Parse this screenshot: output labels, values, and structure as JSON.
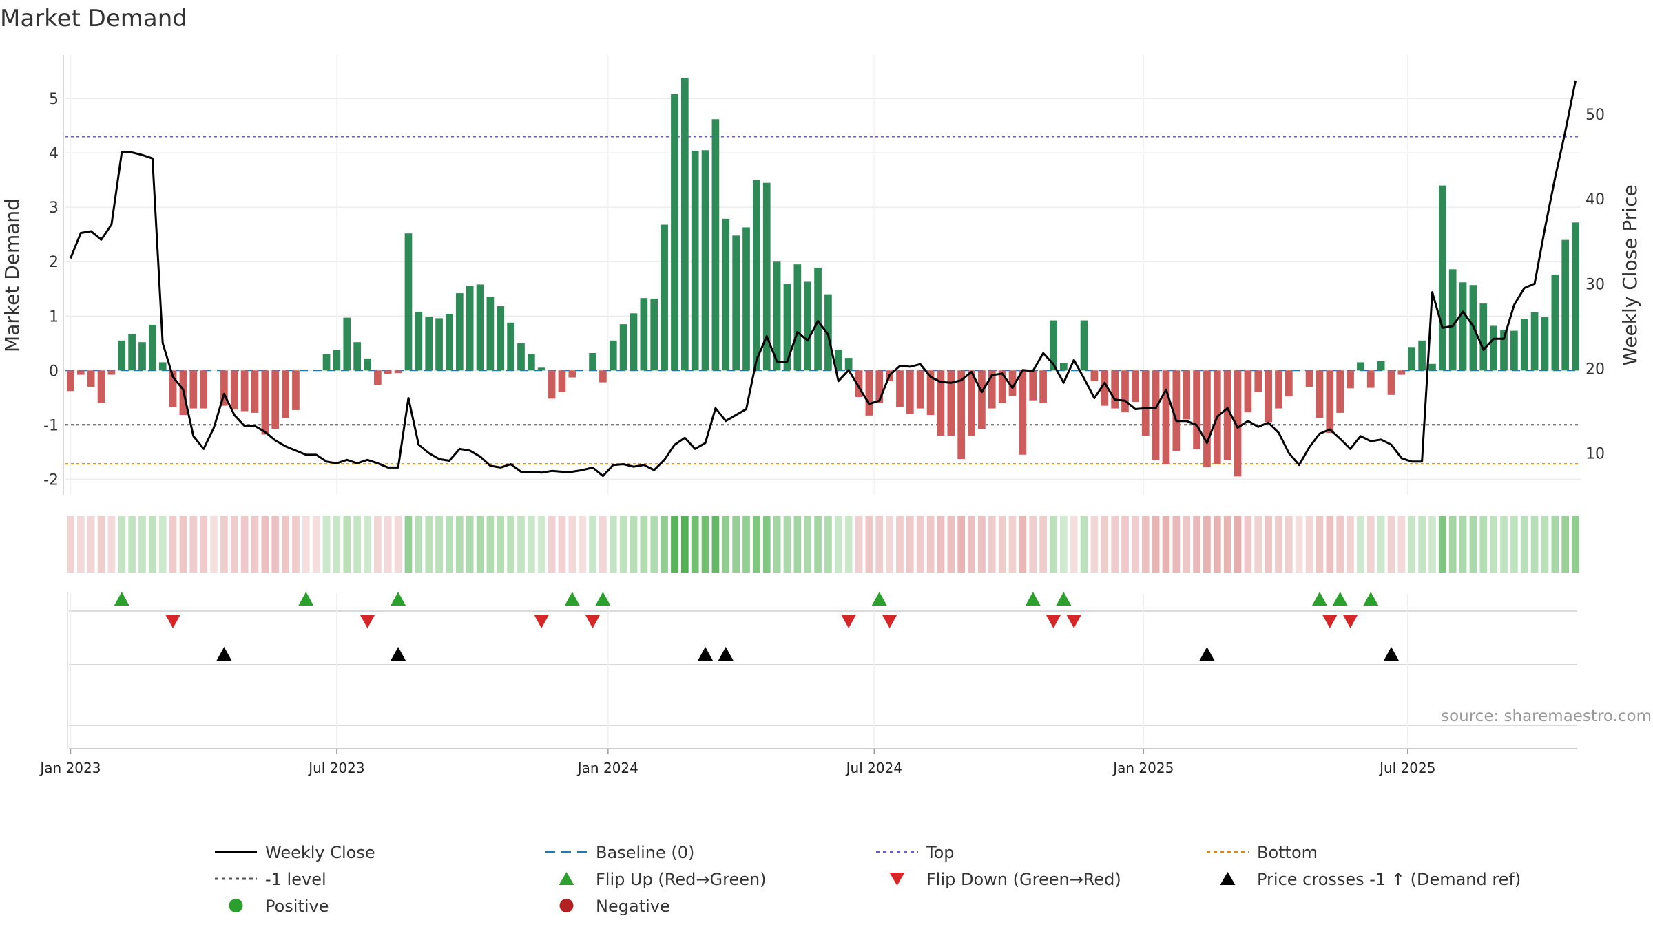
{
  "chart_data": {
    "type": "bar",
    "title": "Market Demand",
    "ylabel": "Market Demand",
    "y2label": "Weekly Close Price",
    "ylim": [
      -2.3,
      5.8
    ],
    "y2lim": [
      5,
      57
    ],
    "yticks": [
      -2,
      -1,
      0,
      1,
      2,
      3,
      4,
      5
    ],
    "y2ticks": [
      10,
      20,
      30,
      40,
      50
    ],
    "start_week": 0,
    "date_ticks": [
      {
        "week": 0,
        "label": "Jan 2023"
      },
      {
        "week": 26,
        "label": "Jul 2023"
      },
      {
        "week": 52.5,
        "label": "Jan 2024"
      },
      {
        "week": 78.5,
        "label": "Jul 2024"
      },
      {
        "week": 104.8,
        "label": "Jan 2025"
      },
      {
        "week": 130.6,
        "label": "Jul 2025"
      }
    ],
    "levels": {
      "top": 4.3,
      "minus_one": -1,
      "bottom": -1.72,
      "baseline": 0
    },
    "demand": [
      -0.38,
      -0.08,
      -0.3,
      -0.6,
      -0.08,
      0.55,
      0.67,
      0.52,
      0.84,
      0.15,
      -0.68,
      -0.82,
      -0.7,
      -0.7,
      0,
      -0.65,
      -0.72,
      -0.75,
      -0.78,
      -1.18,
      -1.08,
      -0.88,
      -0.73,
      0,
      0,
      0.3,
      0.38,
      0.97,
      0.52,
      0.22,
      -0.27,
      -0.06,
      -0.05,
      2.52,
      1.08,
      0.99,
      0.96,
      1.04,
      1.42,
      1.56,
      1.58,
      1.35,
      1.18,
      0.88,
      0.5,
      0.3,
      0.05,
      -0.52,
      -0.4,
      -0.13,
      0,
      0.32,
      -0.22,
      0.55,
      0.85,
      1.05,
      1.33,
      1.32,
      2.68,
      5.08,
      5.38,
      4.04,
      4.05,
      4.62,
      2.79,
      2.48,
      2.63,
      3.5,
      3.45,
      2.0,
      1.59,
      1.95,
      1.63,
      1.89,
      1.4,
      0.38,
      0.23,
      -0.49,
      -0.83,
      -0.6,
      -0.2,
      -0.67,
      -0.8,
      -0.7,
      -0.82,
      -1.2,
      -1.2,
      -1.63,
      -1.2,
      -1.08,
      -0.7,
      -0.6,
      -0.47,
      -1.55,
      -0.55,
      -0.6,
      0.92,
      0.13,
      0.0,
      0.92,
      -0.2,
      -0.65,
      -0.7,
      -0.77,
      -0.58,
      -1.2,
      -1.65,
      -1.73,
      -1.48,
      -0.9,
      -1.45,
      -1.78,
      -1.72,
      -1.65,
      -1.95,
      -0.77,
      -0.4,
      -0.95,
      -0.7,
      -0.48,
      0,
      -0.3,
      -0.87,
      -1.15,
      -0.78,
      -0.33,
      0.15,
      -0.32,
      0.17,
      -0.45,
      -0.08,
      0.43,
      0.55,
      0.12,
      3.4,
      1.86,
      1.62,
      1.57,
      1.23,
      0.82,
      0.75,
      0.73,
      0.95,
      1.07,
      0.98,
      1.76,
      2.4,
      2.72
    ],
    "close": [
      33,
      36,
      36.2,
      35.2,
      37,
      45.5,
      45.5,
      45.2,
      44.8,
      23,
      19,
      17.5,
      12,
      10.5,
      13,
      17,
      14.5,
      13.2,
      13.2,
      12.5,
      11.5,
      10.8,
      10.3,
      9.8,
      9.8,
      9,
      8.8,
      9.2,
      8.8,
      9.2,
      8.8,
      8.3,
      8.3,
      16.5,
      11,
      10,
      9.3,
      9.1,
      10.5,
      10.3,
      9.6,
      8.5,
      8.3,
      8.7,
      7.8,
      7.8,
      7.7,
      7.9,
      7.8,
      7.8,
      8,
      8.3,
      7.3,
      8.6,
      8.7,
      8.4,
      8.6,
      8,
      9.2,
      11,
      11.8,
      10.5,
      11.2,
      15.3,
      13.8,
      14.5,
      15.2,
      21,
      23.8,
      20.8,
      20.8,
      24.3,
      23.3,
      25.6,
      24,
      18.5,
      19.8,
      17.8,
      15.8,
      16.2,
      19.2,
      20.3,
      20.2,
      20.5,
      19,
      18.4,
      18.3,
      18.6,
      19.6,
      17.2,
      19.2,
      19.4,
      17.7,
      19.8,
      19.7,
      21.8,
      20.5,
      18.3,
      21,
      18.8,
      16.5,
      18.3,
      16.3,
      16.2,
      15.2,
      15.3,
      15.3,
      17.5,
      13.8,
      13.8,
      13.3,
      11.2,
      14.3,
      15.3,
      13,
      13.8,
      13.1,
      13.6,
      12.4,
      10,
      8.6,
      10.7,
      12.3,
      12.8,
      11.7,
      10.5,
      12,
      11.4,
      11.6,
      11,
      9.4,
      9,
      9,
      29,
      24.8,
      25,
      26.7,
      25,
      22.2,
      23.5,
      23.5,
      27.5,
      29.5,
      30,
      36.5,
      42.5,
      48,
      54
    ],
    "flip_up_weeks": [
      5,
      23,
      32,
      49,
      52,
      79,
      94,
      97,
      122,
      124,
      127
    ],
    "flip_down_weeks": [
      10,
      29,
      46,
      51,
      76,
      80,
      96,
      98,
      123,
      125
    ],
    "cross_weeks": [
      15,
      32,
      62,
      64,
      111,
      129
    ],
    "legend": [
      {
        "type": "line",
        "color": "#000000",
        "label": "Weekly Close"
      },
      {
        "type": "dashed",
        "color": "#1f77b4",
        "label": "Baseline (0)"
      },
      {
        "type": "dotted",
        "color": "#6a5acd",
        "label": "Top"
      },
      {
        "type": "dotted",
        "color": "#e08a00",
        "label": "Bottom"
      },
      {
        "type": "dotted",
        "color": "#555555",
        "label": "-1 level"
      },
      {
        "type": "tri-up",
        "color": "#2ca02c",
        "label": "Flip Up (Red→Green)"
      },
      {
        "type": "tri-down",
        "color": "#d62728",
        "label": "Flip Down (Green→Red)"
      },
      {
        "type": "tri-up",
        "color": "#000000",
        "label": "Price crosses -1 ↑ (Demand ref)"
      },
      {
        "type": "dot",
        "color": "#2ca02c",
        "label": "Positive"
      },
      {
        "type": "dot",
        "color": "#b22222",
        "label": "Negative"
      }
    ],
    "source": "source: sharemaestro.com"
  },
  "colors": {
    "positive_bar": "#2e8b57",
    "negative_bar": "#cd5c5c",
    "close_line": "#000000"
  }
}
